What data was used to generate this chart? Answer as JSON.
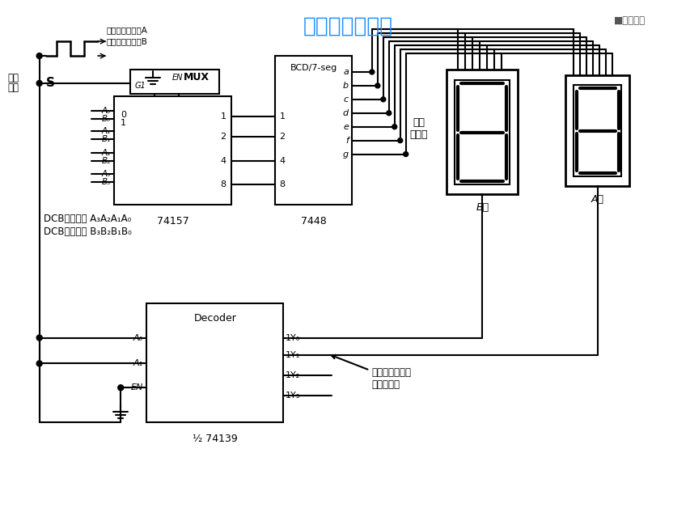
{
  "title": "数码管动态显示",
  "title_color": "#1E90FF",
  "clock_label1": "低电平选择数据A",
  "clock_label2": "高电平选择数据B",
  "mux_label": "MUX",
  "mux_en_label": "EN",
  "mux_g1_label": "G1",
  "mux_chip": "74157",
  "bcd_label": "BCD/7-seg",
  "bcd_chip": "7448",
  "decoder_label": "Decoder",
  "decoder_chip": "½ 74139",
  "dcb_low": "DCB码低位： A₃A₂A₁A₀",
  "dcb_high": "DCB码高位： B₃B₂B₁B₀",
  "shuju_label1": "数据",
  "shuju_label2": "选择",
  "s_label": "S",
  "gong_yin": "共阴\n显示器",
  "b_wei": "B位",
  "a_wei": "A位",
  "drive_label1": "驱动共阴显示器",
  "drive_label2": "低电平有效",
  "logo": "■中国大学"
}
